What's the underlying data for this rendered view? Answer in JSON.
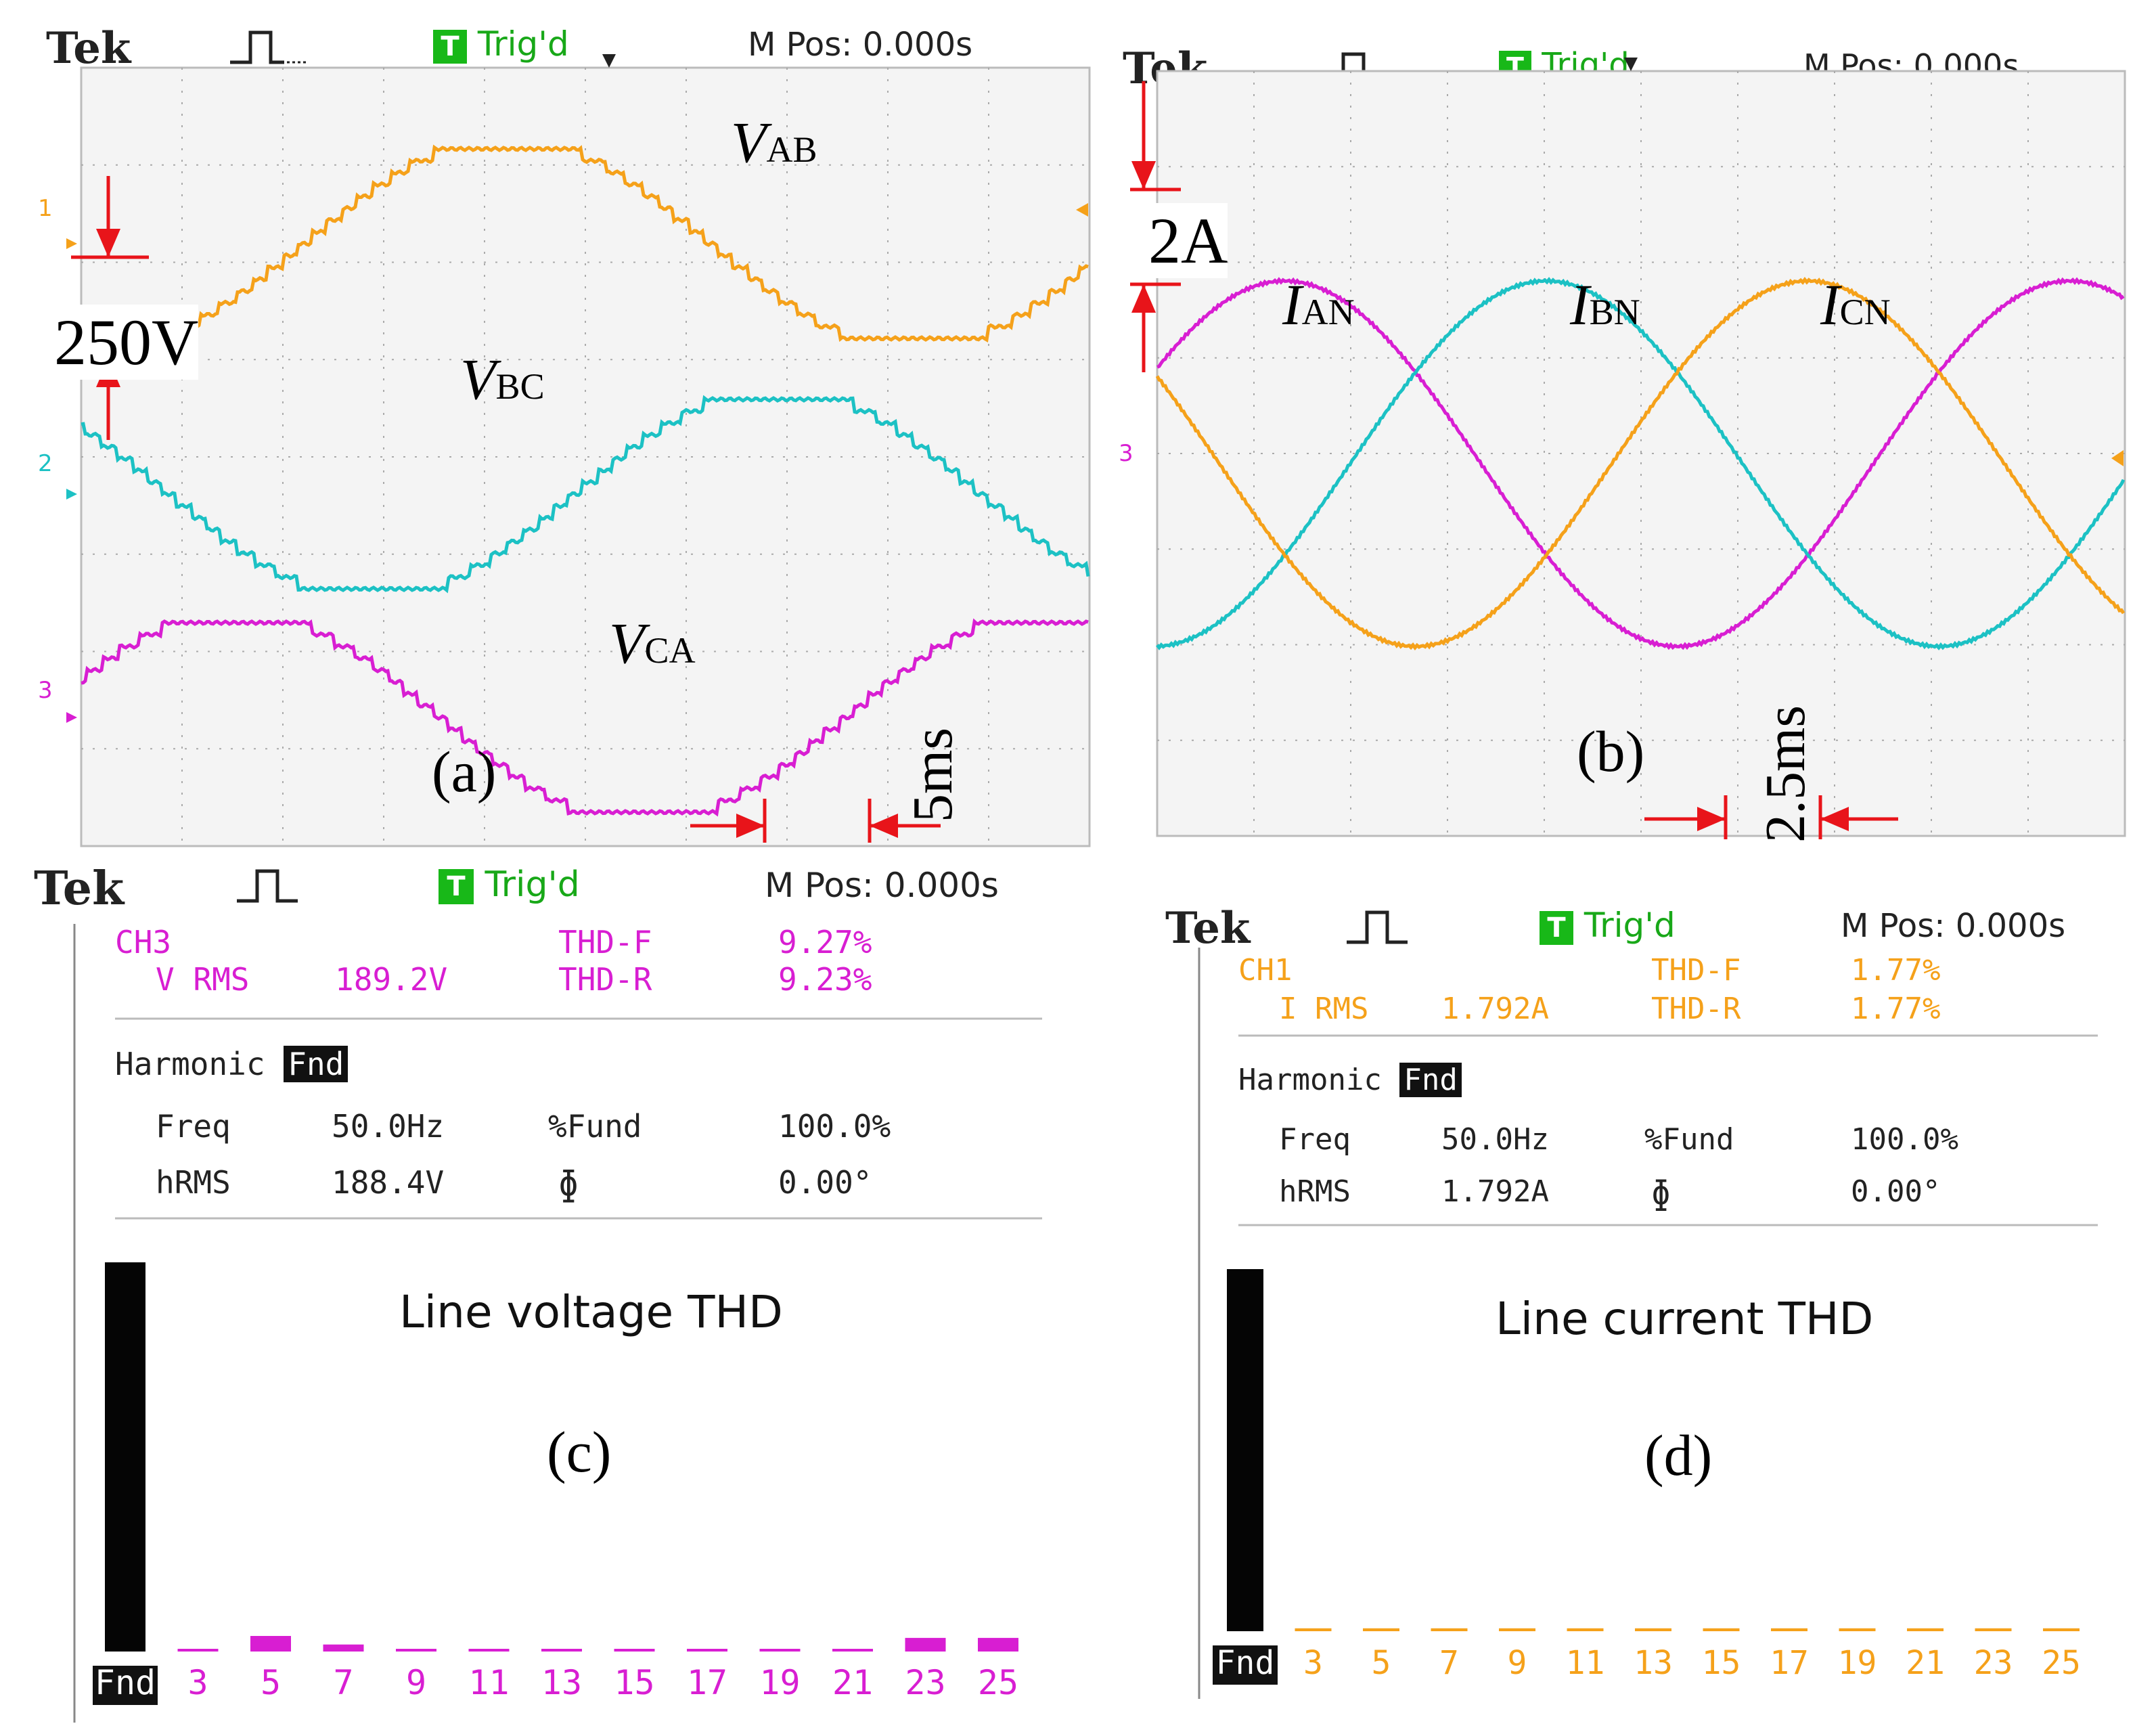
{
  "header": {
    "brand": "Tek",
    "trig_box": "T",
    "trig_status": "Trig'd",
    "mpos": "M Pos: 0.000s"
  },
  "panel_a": {
    "label": "(a)",
    "scale_v": "250V",
    "time_scale": "5ms",
    "ch_markers": [
      "1",
      "2",
      "3"
    ],
    "traces": [
      {
        "name_main": "V",
        "name_sub": "AB",
        "color": "#f5a11a",
        "phase_deg": 0
      },
      {
        "name_main": "V",
        "name_sub": "BC",
        "color": "#1cc1c4",
        "phase_deg": -120
      },
      {
        "name_main": "V",
        "name_sub": "CA",
        "color": "#d81ed2",
        "phase_deg": 120
      }
    ]
  },
  "panel_b": {
    "label": "(b)",
    "scale_i": "2A",
    "time_scale": "2.5ms",
    "ch_marker": "3",
    "traces": [
      {
        "name_main": "I",
        "name_sub": "AN",
        "color": "#d81ed2"
      },
      {
        "name_main": "I",
        "name_sub": "BN",
        "color": "#1cc1c4"
      },
      {
        "name_main": "I",
        "name_sub": "CN",
        "color": "#f5a11a"
      }
    ]
  },
  "panel_c": {
    "label": "(c)",
    "caption": "Line voltage THD",
    "color": "#d81ed2",
    "channel": "CH3",
    "rms_label": "V RMS",
    "rms_value": "189.2V",
    "thdf_label": "THD-F",
    "thdf_value": "9.27%",
    "thdr_label": "THD-R",
    "thdr_value": "9.23%",
    "harmonic_label": "Harmonic",
    "harmonic_sel": "Fnd",
    "freq_label": "Freq",
    "freq_value": "50.0Hz",
    "fund_label": "%Fund",
    "fund_value": "100.0%",
    "hrms_label": "hRMS",
    "hrms_value": "188.4V",
    "phi_label": "ɸ",
    "phi_value": "0.00°"
  },
  "panel_d": {
    "label": "(d)",
    "caption": "Line current THD",
    "color": "#f5a11a",
    "channel": "CH1",
    "rms_label": "I RMS",
    "rms_value": "1.792A",
    "thdf_label": "THD-F",
    "thdf_value": "1.77%",
    "thdr_label": "THD-R",
    "thdr_value": "1.77%",
    "harmonic_label": "Harmonic",
    "harmonic_sel": "Fnd",
    "freq_label": "Freq",
    "freq_value": "50.0Hz",
    "fund_label": "%Fund",
    "fund_value": "100.0%",
    "hrms_label": "hRMS",
    "hrms_value": "1.792A",
    "phi_label": "ɸ",
    "phi_value": "0.00°"
  },
  "chart_data": [
    {
      "type": "line",
      "title": "(a)",
      "series": [
        {
          "name": "VAB",
          "shape": "stepped sine",
          "cycles_shown": 2.5
        },
        {
          "name": "VBC",
          "shape": "stepped sine",
          "cycles_shown": 2.5
        },
        {
          "name": "VCA",
          "shape": "stepped sine",
          "cycles_shown": 2.5
        }
      ],
      "annotations": [
        "250V",
        "5ms"
      ]
    },
    {
      "type": "line",
      "title": "(b)",
      "series": [
        {
          "name": "IAN",
          "shape": "sine"
        },
        {
          "name": "IBN",
          "shape": "sine"
        },
        {
          "name": "ICN",
          "shape": "sine"
        }
      ],
      "annotations": [
        "2A",
        "2.5ms"
      ]
    },
    {
      "type": "bar",
      "title": "Line voltage THD",
      "categories": [
        "Fnd",
        "3",
        "5",
        "7",
        "9",
        "11",
        "13",
        "15",
        "17",
        "19",
        "21",
        "23",
        "25"
      ],
      "values": [
        100.0,
        0.4,
        4.0,
        1.8,
        0.6,
        0.6,
        0.6,
        0.6,
        0.6,
        0.6,
        0.6,
        3.5,
        3.5
      ],
      "ylabel": "%Fund"
    },
    {
      "type": "bar",
      "title": "Line current THD",
      "categories": [
        "Fnd",
        "3",
        "5",
        "7",
        "9",
        "11",
        "13",
        "15",
        "17",
        "19",
        "21",
        "23",
        "25"
      ],
      "values": [
        100.0,
        0.8,
        0.8,
        0.8,
        0.8,
        0.8,
        0.8,
        0.8,
        0.8,
        0.8,
        0.8,
        0.8,
        0.8
      ],
      "ylabel": "%Fund"
    }
  ]
}
